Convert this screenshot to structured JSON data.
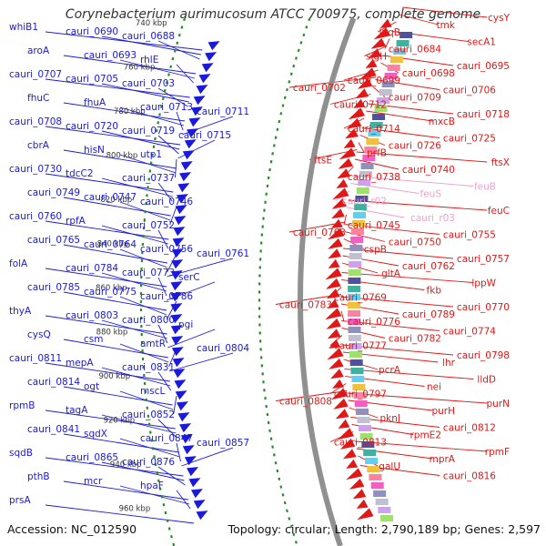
{
  "title": "Corynebacterium aurimucosum ATCC 700975, complete genome",
  "footer": {
    "accession": "Accession: NC_012590",
    "topology": "Topology: circular; Length: 2,790,189 bp; Genes: 2,597"
  },
  "colors": {
    "forward": "#1a1ad8",
    "reverse": "#e01818",
    "rna": "#f0a0d0",
    "backbone": "#909090",
    "gc_track": "#2a8a2a"
  },
  "kbp_marks": [
    "740 kbp",
    "760 kbp",
    "780 kbp",
    "800 kbp",
    "820 kbp",
    "840 kbp",
    "860 kbp",
    "880 kbp",
    "900 kbp",
    "920 kbp",
    "940 kbp",
    "960 kbp"
  ],
  "left_labels": [
    "whiB1",
    "cauri_0690",
    "cauri_0688",
    "aroA",
    "cauri_0693",
    "rhlE",
    "cauri_0707",
    "cauri_0705",
    "cauri_0703",
    "fhuC",
    "fhuA",
    "cauri_0713",
    "cauri_0711",
    "cauri_0708",
    "cauri_0720",
    "cauri_0719",
    "cauri_0715",
    "cbrA",
    "hisN",
    "utp1",
    "cauri_0730",
    "tdcC2",
    "cauri_0737",
    "cauri_0749",
    "cauri_0747",
    "cauri_0746",
    "cauri_0760",
    "rpfA",
    "cauri_0752",
    "cauri_0765",
    "cauri_0764",
    "cauri_0756",
    "cauri_0761",
    "folA",
    "cauri_0784",
    "cauri_0773",
    "serC",
    "cauri_0785",
    "cauri_0775",
    "cauri_0786",
    "thyA",
    "cauri_0803",
    "cauri_0800",
    "pgi",
    "cysQ",
    "csm",
    "amtR",
    "cauri_0804",
    "cauri_0811",
    "mepA",
    "cauri_0831",
    "cauri_0814",
    "ogt",
    "mscL",
    "rpmB",
    "tagA",
    "cauri_0852",
    "cauri_0841",
    "sqdX",
    "cauri_0847",
    "cauri_0857",
    "sqdB",
    "cauri_0865",
    "cauri_0876",
    "pthB",
    "mcr",
    "hpaF",
    "prsA"
  ],
  "right_labels": [
    "cysY",
    "tmk",
    "lpqB",
    "secA1",
    "cauri_0684",
    "sigH",
    "cauri_0695",
    "cauri_0698",
    "cauri_0699",
    "cauri_0702",
    "cauri_0706",
    "cauri_0709",
    "cauri_0712",
    "cauri_0718",
    "mxcB",
    "cauri_0714",
    "cauri_0725",
    "cauri_0726",
    "prfB",
    "ftsE",
    "ftsX",
    "cauri_0740",
    "cauri_0738",
    "feuB",
    "feuS",
    "cauri_r02",
    "feuC",
    "cauri_r03",
    "cauri_0745",
    "cauri_0763",
    "cauri_0755",
    "cauri_0750",
    "cspB",
    "cauri_0757",
    "cauri_0762",
    "gltA",
    "lppW",
    "fkb",
    "cauri_0769",
    "cauri_0783",
    "cauri_0770",
    "cauri_0789",
    "cauri_0776",
    "cauri_0774",
    "cauri_0782",
    "cauri_0777",
    "cauri_0798",
    "lhr",
    "pcrA",
    "lldD",
    "nei",
    "cauri_0797",
    "cauri_0808",
    "purN",
    "purH",
    "pknJ",
    "cauri_0812",
    "rpmE2",
    "cauri_0813",
    "rpmF",
    "mprA",
    "galU",
    "cauri_0816"
  ]
}
